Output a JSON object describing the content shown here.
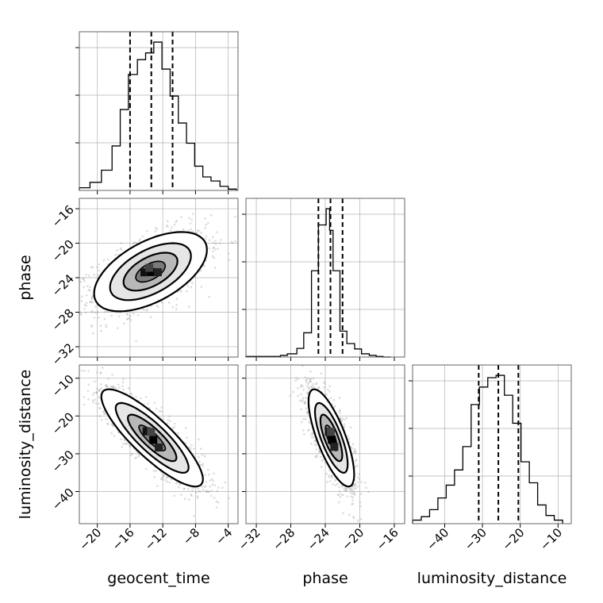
{
  "chart_data": {
    "type": "corner",
    "parameters": [
      "geocent_time",
      "phase",
      "luminosity_distance"
    ],
    "ticks": {
      "geocent_time": [
        "−20",
        "−16",
        "−12",
        "−8",
        "−4"
      ],
      "phase": [
        "−32",
        "−28",
        "−24",
        "−20",
        "−16"
      ],
      "luminosity_distance": [
        "−40",
        "−30",
        "−20",
        "−10"
      ]
    },
    "tick_values": {
      "geocent_time": [
        -20,
        -16,
        -12,
        -8,
        -4
      ],
      "phase": [
        -32,
        -28,
        -24,
        -20,
        -16
      ],
      "luminosity_distance": [
        -40,
        -30,
        -20,
        -10
      ]
    },
    "ranges": {
      "geocent_time": [
        -22.2,
        -2.8
      ],
      "phase": [
        -33.2,
        -14.8
      ],
      "luminosity_distance": [
        -48.5,
        -6.5
      ]
    },
    "grid": true,
    "histograms": [
      {
        "parameter": "geocent_time",
        "quantile_lines": [
          -16.0,
          -13.4,
          -10.8
        ],
        "bin_edges": [
          -22.2,
          -20.9,
          -19.5,
          -18.2,
          -17.2,
          -16.2,
          -15.1,
          -14.1,
          -13.1,
          -12.1,
          -11.1,
          -10.1,
          -9.1,
          -8.1,
          -7.1,
          -6.1,
          -5.0,
          -4.0,
          -3.0
        ],
        "counts": [
          2,
          6,
          15,
          33,
          60,
          86,
          97,
          102,
          110,
          90,
          70,
          50,
          35,
          18,
          10,
          7,
          3,
          1
        ]
      },
      {
        "parameter": "phase",
        "quantile_lines": [
          -24.8,
          -23.4,
          -22.0
        ],
        "bin_edges": [
          -33.2,
          -29.2,
          -28.4,
          -27.3,
          -26.5,
          -25.6,
          -24.8,
          -23.9,
          -23.5,
          -23.1,
          -22.3,
          -21.5,
          -20.6,
          -19.8,
          -18.9,
          -18.1,
          -17.3,
          -16.4
        ],
        "counts": [
          1,
          3,
          6,
          16,
          45,
          160,
          245,
          275,
          235,
          160,
          48,
          25,
          15,
          6,
          3,
          1,
          0
        ]
      },
      {
        "parameter": "luminosity_distance",
        "quantile_lines": [
          -31.0,
          -25.8,
          -20.5
        ],
        "bin_edges": [
          -48.5,
          -46.2,
          -44.0,
          -41.8,
          -39.6,
          -37.4,
          -35.2,
          -33.0,
          -30.8,
          -28.6,
          -26.4,
          -24.2,
          -22.0,
          -19.8,
          -17.6,
          -15.4,
          -13.2,
          -11.0,
          -8.8
        ],
        "counts": [
          3,
          6,
          12,
          22,
          33,
          46,
          66,
          102,
          117,
          125,
          127,
          110,
          86,
          53,
          35,
          16,
          7,
          3
        ]
      }
    ],
    "density_panels": [
      {
        "x": "geocent_time",
        "y": "phase",
        "mean": [
          -13.5,
          -23.3
        ],
        "sd": [
          3.0,
          2.0
        ],
        "rho": 0.55
      },
      {
        "x": "geocent_time",
        "y": "luminosity_distance",
        "mean": [
          -13.3,
          -25.8
        ],
        "sd": [
          2.7,
          5.6
        ],
        "rho": -0.85
      },
      {
        "x": "phase",
        "y": "luminosity_distance",
        "mean": [
          -23.3,
          -25.8
        ],
        "sd": [
          1.15,
          5.6
        ],
        "rho": -0.75
      }
    ]
  }
}
